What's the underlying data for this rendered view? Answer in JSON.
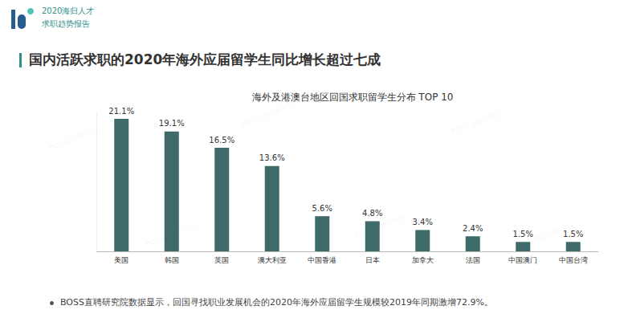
{
  "header": {
    "lines": [
      "2020海归人才",
      "求职趋势报告"
    ]
  },
  "headline": "国内活跃求职的2020年海外应届留学生同比增长超过七成",
  "watermark": "BOSS直聘研究院",
  "footnote": "BOSS直聘研究院数据显示，回国寻找职业发展机会的2020年海外应届留学生规模较2019年同期激增72.9%。",
  "chart_data": {
    "type": "bar",
    "title": "海外及港澳台地区回国求职留学生分布 TOP 10",
    "categories": [
      "美国",
      "韩国",
      "英国",
      "澳大利亚",
      "中国香港",
      "日本",
      "加拿大",
      "法国",
      "中国澳门",
      "中国台湾"
    ],
    "values": [
      21.1,
      19.1,
      16.5,
      13.6,
      5.6,
      4.8,
      3.4,
      2.4,
      1.5,
      1.5
    ],
    "value_labels": [
      "21.1%",
      "19.1%",
      "16.5%",
      "13.6%",
      "5.6%",
      "4.8%",
      "3.4%",
      "2.4%",
      "1.5%",
      "1.5%"
    ],
    "color": "#3e6a6a",
    "ylim": [
      0,
      22
    ],
    "data_labels": true,
    "tick_labels": "x",
    "grid": false
  }
}
